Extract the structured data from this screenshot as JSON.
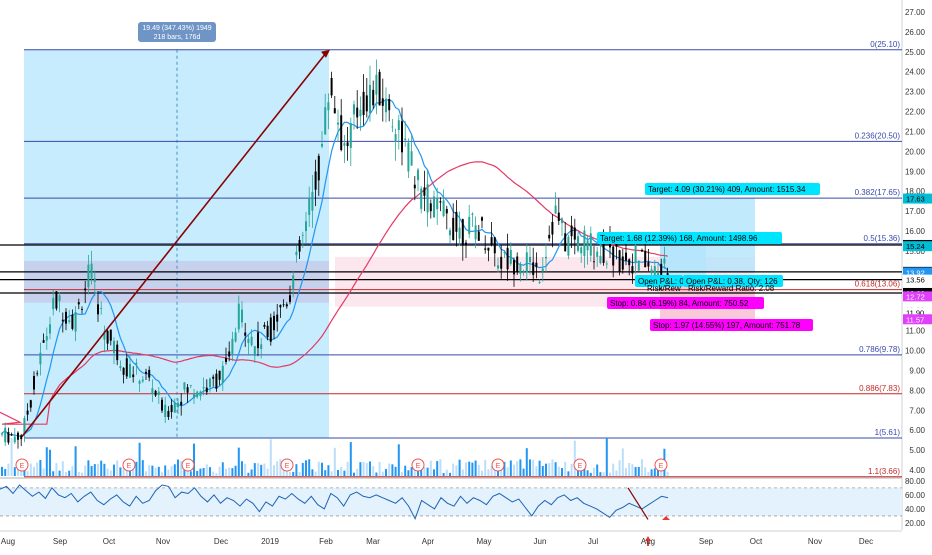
{
  "chart_data": {
    "type": "candlestick",
    "price_axis": {
      "ticks": [
        "27.00",
        "26.00",
        "25.00",
        "24.00",
        "23.00",
        "22.00",
        "21.00",
        "20.00",
        "19.00",
        "18.00",
        "17.00",
        "16.00",
        "15.00",
        "14.00",
        "13.00",
        "12.00",
        "11.00",
        "10.00",
        "9.00",
        "8.00",
        "7.00",
        "6.00",
        "5.00",
        "4.00"
      ],
      "range": [
        3.6,
        27.6
      ]
    },
    "time_axis": [
      "Aug",
      "Sep",
      "Oct",
      "Nov",
      "Dec",
      "2019",
      "Feb",
      "Mar",
      "Apr",
      "May",
      "Jun",
      "Jul",
      "Aug",
      "Sep",
      "Oct",
      "Nov",
      "Dec"
    ],
    "fibonacci": [
      {
        "label": "0(25.10)",
        "value": 25.1,
        "color": "#3949ab"
      },
      {
        "label": "0.236(20.50)",
        "value": 20.5,
        "color": "#3949ab"
      },
      {
        "label": "0.382(17.65)",
        "value": 17.65,
        "color": "#3949ab"
      },
      {
        "label": "0.5(15.36)",
        "value": 15.36,
        "color": "#3949ab"
      },
      {
        "label": "0.618(13.06)",
        "value": 13.06,
        "color": "#c62828"
      },
      {
        "label": "0.786(9.78)",
        "value": 9.78,
        "color": "#3949ab"
      },
      {
        "label": "0.886(7.83)",
        "value": 7.83,
        "color": "#c62828"
      },
      {
        "label": "1(5.61)",
        "value": 5.61,
        "color": "#3949ab"
      },
      {
        "label": "1.1(3.66)",
        "value": 3.66,
        "color": "#c62828"
      }
    ],
    "horizontal_lines": [
      15.3,
      13.95,
      13.56,
      12.89
    ],
    "price_tags": [
      {
        "text": "17.63",
        "value": 17.63,
        "bg": "#00bcd4",
        "fg": "#000000"
      },
      {
        "text": "15.30",
        "value": 15.3,
        "bg": "#000000",
        "fg": "#ffffff"
      },
      {
        "text": "15.24",
        "value": 15.24,
        "bg": "#00bcd4",
        "fg": "#000000"
      },
      {
        "text": "13.95",
        "value": 13.95,
        "bg": "#000000",
        "fg": "#ffffff"
      },
      {
        "text": "13.92",
        "value": 13.92,
        "bg": "#2196f3",
        "fg": "#ffffff"
      },
      {
        "text": "13.56",
        "value": 13.56,
        "bg": "#ffffff",
        "fg": "#000000"
      },
      {
        "text": "12.89",
        "value": 12.89,
        "bg": "#000000",
        "fg": "#ffffff"
      },
      {
        "text": "12.72",
        "value": 12.72,
        "bg": "#e040fb",
        "fg": "#ffffff"
      },
      {
        "text": "11.90",
        "value": 11.9,
        "bg": "#ffffff",
        "fg": "#000000"
      },
      {
        "text": "11.57",
        "value": 11.57,
        "bg": "#e040fb",
        "fg": "#ffffff"
      }
    ],
    "measure_label": {
      "line1": "19.49 (347.43%) 1949",
      "line2": "218 bars, 176d"
    },
    "trades": [
      {
        "target": "Target: 4.09 (30.21%) 409, Amount: 1515.34",
        "stop": "Stop: 1.97 (14.55%) 197, Amount: 751.78",
        "pnl": "Open P&L: 0.38, Qty: 126",
        "ratio": "Risk/Reward Ratio: 2.08"
      },
      {
        "target": "Target: 1.68 (12.39%) 168, Amount: 1498.96",
        "stop": "Stop: 0.84 (6.19%) 84, Amount: 750.52",
        "pnl": "Open P&L: 0",
        "ratio": "Risk/Rew"
      }
    ],
    "earnings_marker": "E",
    "rsi": {
      "ticks": [
        "80.00",
        "60.00",
        "40.00",
        "20.00"
      ],
      "range": [
        10,
        84
      ],
      "band": [
        30,
        70
      ],
      "values": [
        68,
        72,
        62,
        74,
        66,
        58,
        64,
        55,
        70,
        60,
        56,
        62,
        50,
        58,
        64,
        52,
        46,
        54,
        60,
        50,
        44,
        58,
        48,
        52,
        66,
        74,
        72,
        56,
        64,
        62,
        70,
        58,
        50,
        60,
        48,
        56,
        52,
        44,
        54,
        48,
        36,
        50,
        44,
        58,
        54,
        62,
        54,
        48,
        58,
        46,
        40,
        62,
        56,
        44,
        60,
        64,
        58,
        56,
        60,
        56,
        52,
        48,
        56,
        44,
        26,
        52,
        46,
        40,
        56,
        48,
        44,
        58,
        48,
        56,
        52,
        46,
        58,
        62,
        56,
        50,
        54,
        42,
        30,
        44,
        52,
        46,
        56,
        60,
        52,
        56,
        48,
        44,
        40,
        34,
        28,
        38,
        42,
        48,
        44,
        40,
        46,
        52,
        58,
        56
      ]
    },
    "colors": {
      "up": "#26a69a",
      "down": "#000000",
      "ma_fast": "#2196f3",
      "ma_slow": "#e53963",
      "range_fill": "#b3e5fc",
      "volume_up": "#2196f3",
      "volume_down": "#bbdefb"
    }
  }
}
